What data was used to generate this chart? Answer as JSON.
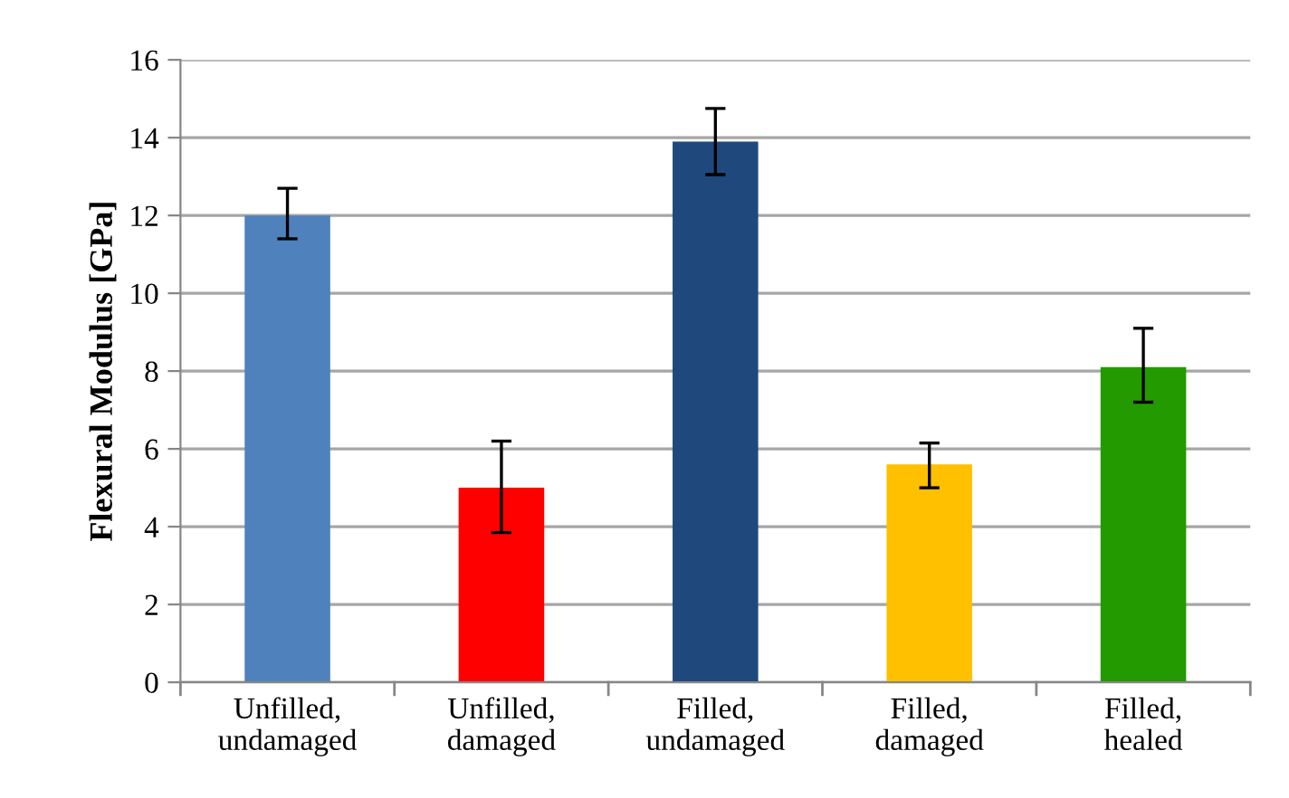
{
  "chart_data": {
    "type": "bar",
    "ylabel": "Flexural Modulus [GPa]",
    "categories": [
      "Unfilled,\nundamaged",
      "Unfilled,\ndamaged",
      "Filled,\nundamaged",
      "Filled,\ndamaged",
      "Filled,\nhealed"
    ],
    "values": [
      12.0,
      5.0,
      13.9,
      5.6,
      8.1
    ],
    "colors": [
      "#4f81bd",
      "#ff0000",
      "#1f497d",
      "#ffc000",
      "#229a00"
    ],
    "errors": [
      [
        11.4,
        12.7
      ],
      [
        3.85,
        6.2
      ],
      [
        13.05,
        14.75
      ],
      [
        5.0,
        6.15
      ],
      [
        7.2,
        9.1
      ]
    ],
    "ylim": [
      0,
      16
    ],
    "yticks": [
      0,
      2,
      4,
      6,
      8,
      10,
      12,
      14,
      16
    ],
    "grid": "y"
  }
}
